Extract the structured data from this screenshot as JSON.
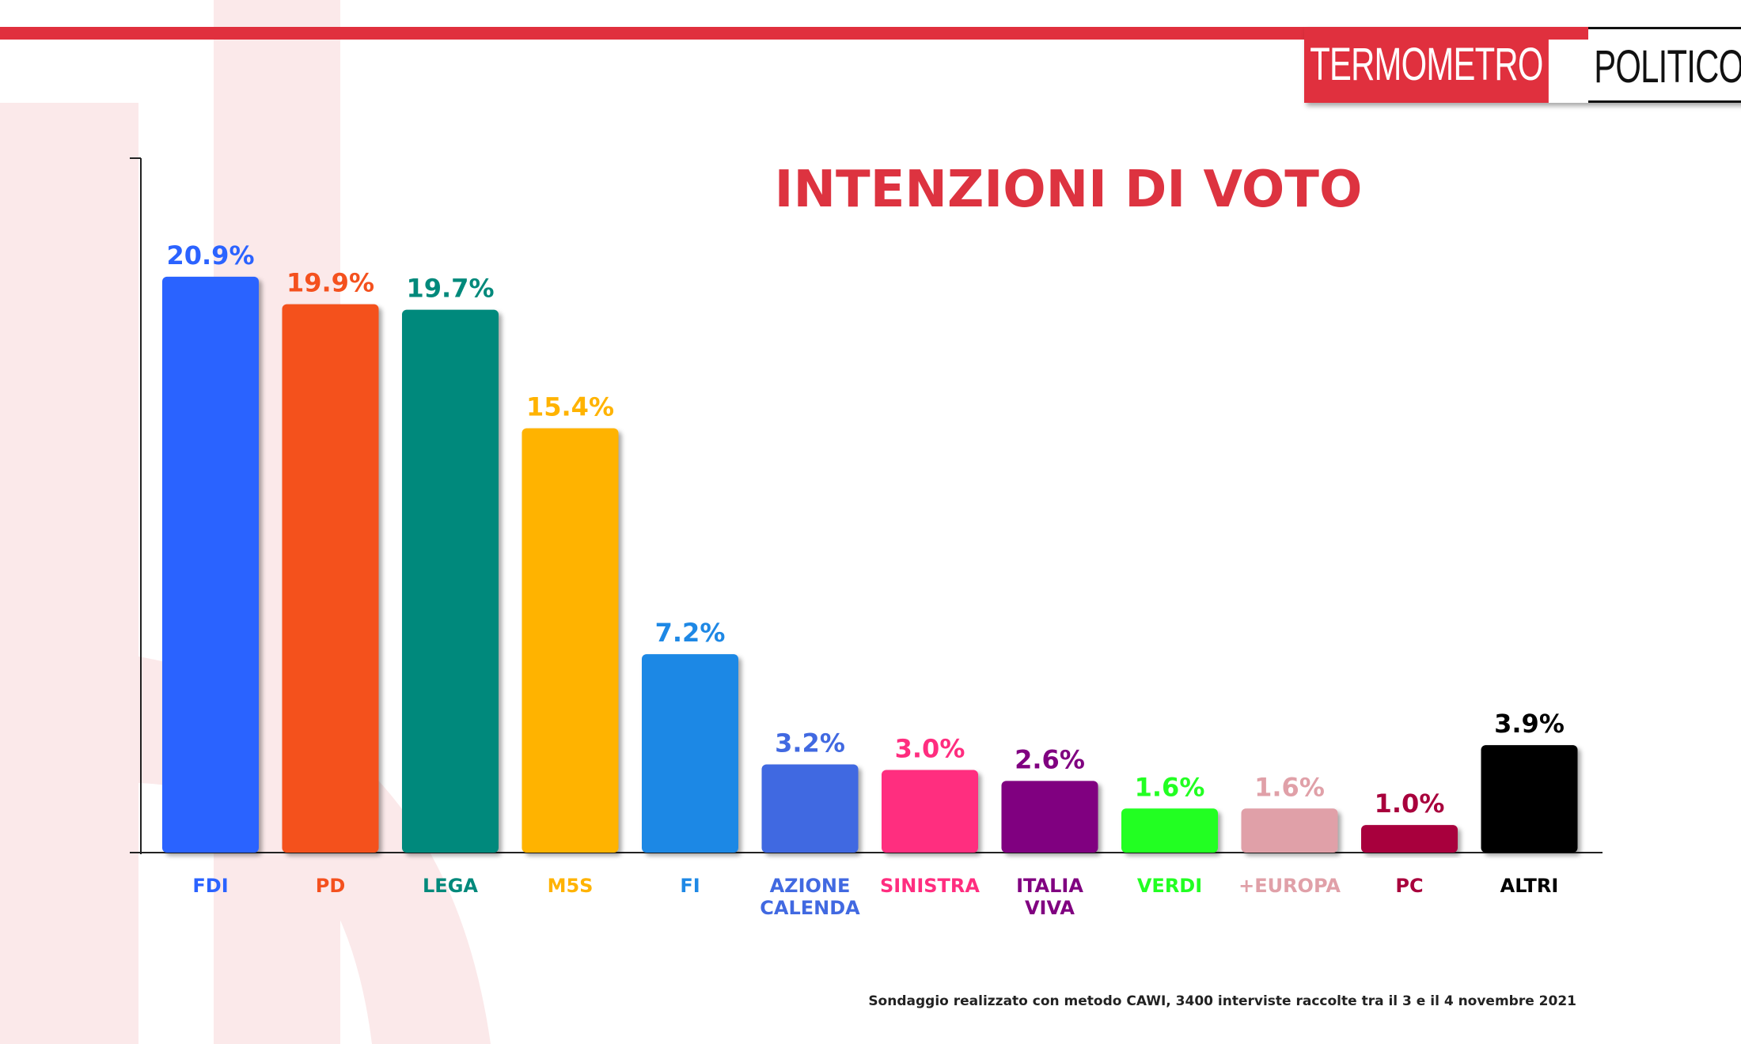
{
  "logo": {
    "part1": "TERMOMETRO",
    "part2": "POLITICO"
  },
  "footnote": "Sondaggio realizzato con metodo CAWI, 3400 interviste raccolte tra il 3 e il 4 novembre 2021",
  "colors": {
    "accent": "#e0303e",
    "title": "#dd3340"
  },
  "chart_data": {
    "type": "bar",
    "title": "INTENZIONI DI VOTO",
    "xlabel": "",
    "ylabel": "",
    "ylim": [
      0,
      25.2
    ],
    "grid": false,
    "categories": [
      "FDI",
      "PD",
      "LEGA",
      "M5S",
      "FI",
      "AZIONE CALENDA",
      "SINISTRA",
      "ITALIA VIVA",
      "VERDI",
      "+EUROPA",
      "PC",
      "ALTRI"
    ],
    "category_lines": [
      [
        "FDI"
      ],
      [
        "PD"
      ],
      [
        "LEGA"
      ],
      [
        "M5S"
      ],
      [
        "FI"
      ],
      [
        "AZIONE",
        "CALENDA"
      ],
      [
        "SINISTRA"
      ],
      [
        "ITALIA",
        "VIVA"
      ],
      [
        "VERDI"
      ],
      [
        "+EUROPA"
      ],
      [
        "PC"
      ],
      [
        "ALTRI"
      ]
    ],
    "values": [
      20.9,
      19.9,
      19.7,
      15.4,
      7.2,
      3.2,
      3.0,
      2.6,
      1.6,
      1.6,
      1.0,
      3.9
    ],
    "value_labels": [
      "20.9%",
      "19.9%",
      "19.7%",
      "15.4%",
      "7.2%",
      "3.2%",
      "3.0%",
      "2.6%",
      "1.6%",
      "1.6%",
      "1.0%",
      "3.9%"
    ],
    "colors": [
      "#2b63ff",
      "#f4511e",
      "#00897b",
      "#ffb300",
      "#1e88e5",
      "#4169e1",
      "#ff2d7f",
      "#800080",
      "#22ff22",
      "#e0a0a8",
      "#a8003c",
      "#000000"
    ]
  }
}
